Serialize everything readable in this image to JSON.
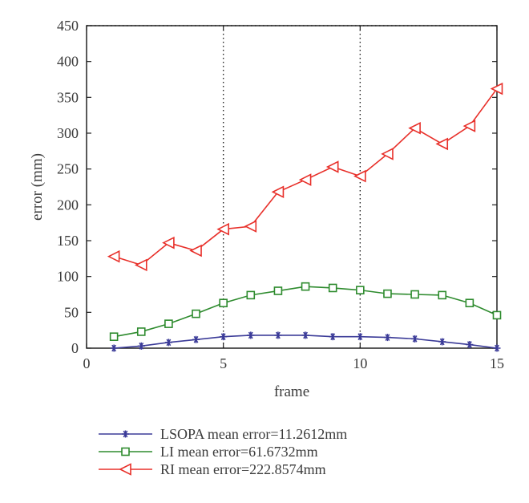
{
  "chart_data": {
    "type": "line",
    "xlabel": "frame",
    "ylabel": "error (mm)",
    "xlim": [
      0,
      15
    ],
    "ylim": [
      0,
      450
    ],
    "xticks": [
      0,
      5,
      10,
      15
    ],
    "yticks": [
      0,
      50,
      100,
      150,
      200,
      250,
      300,
      350,
      400,
      450
    ],
    "grid": "dotted at x=5,10 and y=450",
    "legend_position": "below plot",
    "x": [
      1,
      2,
      3,
      4,
      5,
      6,
      7,
      8,
      9,
      10,
      11,
      12,
      13,
      14,
      15
    ],
    "series": [
      {
        "name": "LSOPA mean error=11.2612mm",
        "color": "#3b3b98",
        "marker": "star",
        "values": [
          0,
          3,
          8,
          12,
          16,
          18,
          18,
          18,
          16,
          16,
          15,
          13,
          9,
          5,
          0
        ]
      },
      {
        "name": "LI mean error=61.6732mm",
        "color": "#2e8b2e",
        "marker": "square",
        "values": [
          16,
          23,
          34,
          48,
          63,
          74,
          80,
          86,
          84,
          81,
          76,
          75,
          74,
          63,
          46
        ]
      },
      {
        "name": "RI mean error=222.8574mm",
        "color": "#e8302a",
        "marker": "triangle-left",
        "values": [
          128,
          116,
          147,
          136,
          166,
          170,
          218,
          235,
          253,
          240,
          271,
          307,
          285,
          310,
          362
        ]
      }
    ]
  }
}
